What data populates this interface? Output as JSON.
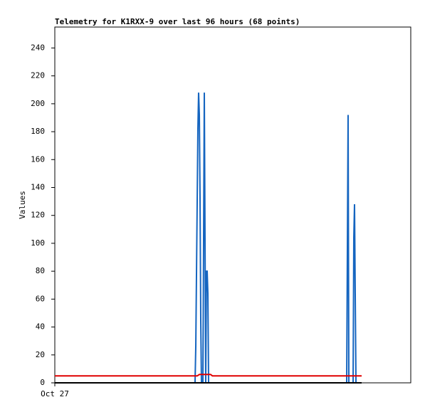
{
  "chart_data": {
    "type": "line",
    "title": "Telemetry for K1RXX-9 over last 96 hours (68 points)",
    "y_label": "Values",
    "xlim": [
      0,
      96
    ],
    "xticks": [
      {
        "value": 0,
        "label": "Oct 27"
      }
    ],
    "ylim": [
      0,
      255
    ],
    "yticks": [
      0,
      20,
      40,
      60,
      80,
      100,
      120,
      140,
      160,
      180,
      200,
      220,
      240
    ],
    "grid": false,
    "series": [
      {
        "color": "#1565c0",
        "x": [
          0,
          37.82,
          38.02,
          38.21,
          38.4,
          38.59,
          38.78,
          38.98,
          39.17,
          39.36,
          39.55,
          39.94,
          40.13,
          40.32,
          40.51,
          40.7,
          40.9,
          41.09,
          41.28,
          41.47,
          78.72,
          78.91,
          79.1,
          79.3,
          80.45,
          80.64,
          80.83,
          81.02,
          81.22,
          82.75
        ],
        "values": [
          0,
          0,
          26,
          78,
          130,
          182,
          208,
          192,
          132,
          45,
          0,
          0,
          104,
          208,
          104,
          0,
          80,
          80,
          64,
          0,
          0,
          96,
          192,
          0,
          0,
          104,
          128,
          64,
          0,
          0
        ]
      },
      {
        "color": "#e00000",
        "x": [
          0,
          38.4,
          39.0,
          42.0,
          42.5,
          82.75
        ],
        "values": [
          5,
          5,
          6,
          6,
          5,
          5
        ]
      },
      {
        "color": "#000000",
        "x": [
          0,
          82.75
        ],
        "values": [
          0,
          0
        ]
      }
    ]
  }
}
